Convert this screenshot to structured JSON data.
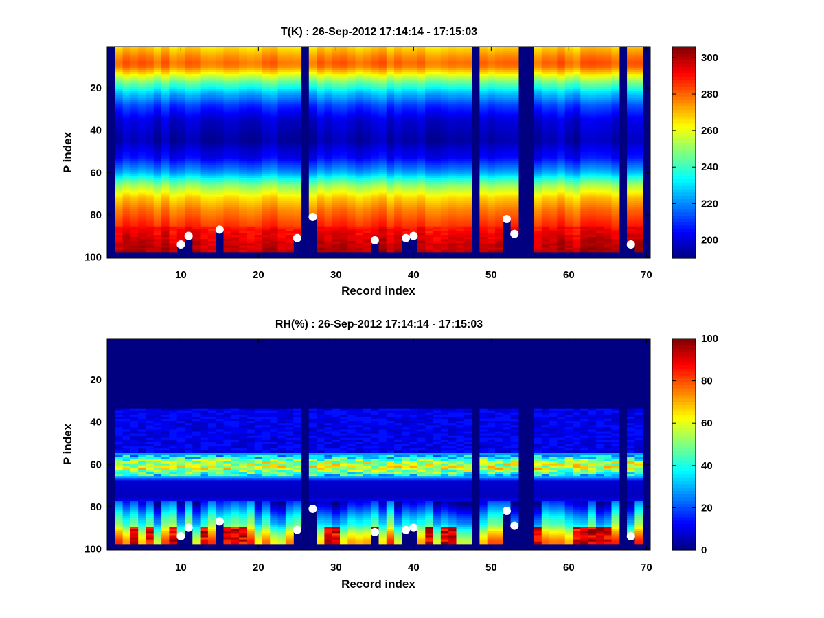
{
  "chart_data": [
    {
      "type": "heatmap",
      "title": "T(K) : 26-Sep-2012 17:14:14 - 17:15:03",
      "xlabel": "Record index",
      "ylabel": "P index",
      "xlim": [
        0.5,
        70.5
      ],
      "ylim": [
        0.5,
        100.5
      ],
      "y_reversed": true,
      "x_ticks": [
        10,
        20,
        30,
        40,
        50,
        60,
        70
      ],
      "y_ticks": [
        20,
        40,
        60,
        80,
        100
      ],
      "colormap": "jet",
      "color_range": [
        190,
        306
      ],
      "colorbar_ticks": [
        200,
        220,
        240,
        260,
        280,
        300
      ],
      "profile": [
        [
          1,
          268
        ],
        [
          5,
          276
        ],
        [
          8,
          280
        ],
        [
          10,
          278
        ],
        [
          13,
          266
        ],
        [
          17,
          248
        ],
        [
          22,
          228
        ],
        [
          28,
          212
        ],
        [
          35,
          200
        ],
        [
          45,
          195
        ],
        [
          53,
          205
        ],
        [
          60,
          224
        ],
        [
          66,
          250
        ],
        [
          72,
          268
        ],
        [
          78,
          278
        ],
        [
          86,
          288
        ],
        [
          94,
          295
        ],
        [
          98,
          297
        ]
      ],
      "profile_note": "approximate temperature (K) versus P index, same for every record",
      "missing_records": [
        1,
        26,
        48,
        54,
        55,
        67,
        70
      ],
      "bottom_level_per_record": [
        97,
        97,
        97,
        97,
        97,
        97,
        97,
        97,
        97,
        94,
        90,
        97,
        97,
        97,
        87,
        97,
        97,
        97,
        97,
        97,
        97,
        97,
        97,
        97,
        90,
        100,
        81,
        97,
        97,
        97,
        97,
        97,
        97,
        97,
        92,
        97,
        97,
        97,
        90,
        89,
        97,
        97,
        97,
        97,
        97,
        97,
        97,
        100,
        97,
        97,
        97,
        82,
        88,
        100,
        100,
        97,
        97,
        97,
        97,
        97,
        97,
        97,
        97,
        97,
        97,
        97,
        100,
        94,
        97,
        100
      ],
      "markers": [
        [
          10,
          94
        ],
        [
          11,
          90
        ],
        [
          15,
          87
        ],
        [
          25,
          91
        ],
        [
          27,
          81
        ],
        [
          35,
          92
        ],
        [
          39,
          91
        ],
        [
          40,
          90
        ],
        [
          52,
          82
        ],
        [
          53,
          89
        ],
        [
          68,
          94
        ]
      ]
    },
    {
      "type": "heatmap",
      "title": "RH(%) : 26-Sep-2012 17:14:14 - 17:15:03",
      "xlabel": "Record index",
      "ylabel": "P index",
      "xlim": [
        0.5,
        70.5
      ],
      "ylim": [
        0.5,
        100.5
      ],
      "y_reversed": true,
      "x_ticks": [
        10,
        20,
        30,
        40,
        50,
        60,
        70
      ],
      "y_ticks": [
        20,
        40,
        60,
        80,
        100
      ],
      "colormap": "jet",
      "color_range": [
        0,
        100
      ],
      "colorbar_ticks": [
        0,
        20,
        40,
        60,
        80,
        100
      ],
      "profile": [
        [
          1,
          0
        ],
        [
          33,
          0
        ],
        [
          36,
          6
        ],
        [
          45,
          10
        ],
        [
          52,
          15
        ],
        [
          56,
          32
        ],
        [
          59,
          55
        ],
        [
          62,
          58
        ],
        [
          65,
          38
        ],
        [
          68,
          8
        ],
        [
          75,
          6
        ],
        [
          79,
          15
        ],
        [
          84,
          30
        ],
        [
          88,
          40
        ],
        [
          92,
          58
        ],
        [
          96,
          70
        ],
        [
          98,
          72
        ]
      ],
      "profile_note": "approximate relative humidity (%) versus P index, with record-to-record variation",
      "missing_records": [
        1,
        26,
        48,
        54,
        55,
        67,
        70
      ],
      "bottom_level_per_record": [
        97,
        97,
        97,
        97,
        97,
        97,
        97,
        97,
        97,
        94,
        90,
        97,
        97,
        97,
        87,
        97,
        97,
        97,
        97,
        97,
        97,
        97,
        97,
        97,
        90,
        100,
        81,
        97,
        97,
        97,
        97,
        97,
        97,
        97,
        92,
        97,
        97,
        97,
        90,
        89,
        97,
        97,
        97,
        97,
        97,
        97,
        97,
        100,
        97,
        97,
        97,
        82,
        88,
        100,
        100,
        97,
        97,
        97,
        97,
        97,
        97,
        97,
        97,
        97,
        97,
        97,
        100,
        94,
        97,
        100
      ],
      "high_humidity_records": [
        4,
        6,
        9,
        13,
        16,
        17,
        18,
        29,
        30,
        35,
        42,
        44,
        45,
        56,
        61,
        62,
        63,
        64,
        65
      ],
      "markers": [
        [
          10,
          94
        ],
        [
          11,
          90
        ],
        [
          15,
          87
        ],
        [
          25,
          91
        ],
        [
          27,
          81
        ],
        [
          35,
          92
        ],
        [
          39,
          91
        ],
        [
          40,
          90
        ],
        [
          52,
          82
        ],
        [
          53,
          89
        ],
        [
          68,
          94
        ]
      ]
    }
  ]
}
